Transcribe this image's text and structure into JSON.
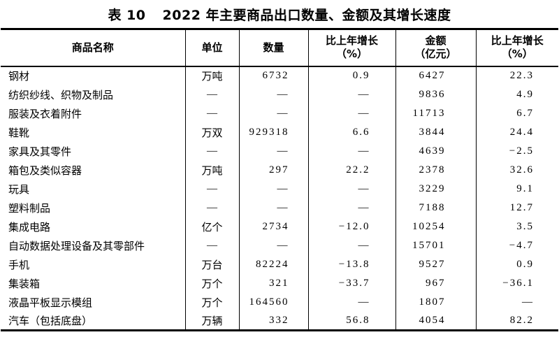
{
  "title": {
    "label": "表 10",
    "text": "2022 年主要商品出口数量、金额及其增长速度"
  },
  "colors": {
    "text": "#000000",
    "background": "#ffffff",
    "border": "#000000"
  },
  "table": {
    "columns": [
      {
        "line1": "商品名称",
        "line2": ""
      },
      {
        "line1": "单位",
        "line2": ""
      },
      {
        "line1": "数量",
        "line2": ""
      },
      {
        "line1": "比上年增长",
        "line2": "（%）"
      },
      {
        "line1": "金额",
        "line2": "（亿元）"
      },
      {
        "line1": "比上年增长",
        "line2": "（%）"
      }
    ],
    "rows": [
      [
        "钢材",
        "万吨",
        "6732",
        "0.9",
        "6427",
        "22.3"
      ],
      [
        "纺织纱线、织物及制品",
        "—",
        "—",
        "—",
        "9836",
        "4.9"
      ],
      [
        "服装及衣着附件",
        "—",
        "—",
        "—",
        "11713",
        "6.7"
      ],
      [
        "鞋靴",
        "万双",
        "929318",
        "6.6",
        "3844",
        "24.4"
      ],
      [
        "家具及其零件",
        "—",
        "—",
        "—",
        "4639",
        "−2.5"
      ],
      [
        "箱包及类似容器",
        "万吨",
        "297",
        "22.2",
        "2378",
        "32.6"
      ],
      [
        "玩具",
        "—",
        "—",
        "—",
        "3229",
        "9.1"
      ],
      [
        "塑料制品",
        "—",
        "—",
        "—",
        "7188",
        "12.7"
      ],
      [
        "集成电路",
        "亿个",
        "2734",
        "−12.0",
        "10254",
        "3.5"
      ],
      [
        "自动数据处理设备及其零部件",
        "—",
        "—",
        "—",
        "15701",
        "−4.7"
      ],
      [
        "手机",
        "万台",
        "82224",
        "−13.8",
        "9527",
        "0.9"
      ],
      [
        "集装箱",
        "万个",
        "321",
        "−33.7",
        "967",
        "−36.1"
      ],
      [
        "液晶平板显示模组",
        "万个",
        "164560",
        "—",
        "1807",
        "—"
      ],
      [
        "汽车（包括底盘）",
        "万辆",
        "332",
        "56.8",
        "4054",
        "82.2"
      ]
    ]
  }
}
